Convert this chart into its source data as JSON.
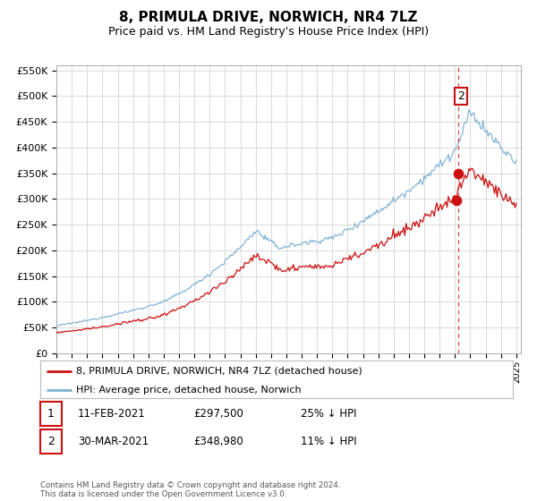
{
  "title": "8, PRIMULA DRIVE, NORWICH, NR4 7LZ",
  "subtitle": "Price paid vs. HM Land Registry's House Price Index (HPI)",
  "ylim": [
    0,
    560000
  ],
  "yticks": [
    0,
    50000,
    100000,
    150000,
    200000,
    250000,
    300000,
    350000,
    400000,
    450000,
    500000,
    550000
  ],
  "hpi_color": "#7eb0d4",
  "price_color": "#cc1111",
  "background_color": "#ffffff",
  "grid_color": "#cccccc",
  "sale1_t": 2021.083,
  "sale1_price": 297500,
  "sale2_t": 2021.208,
  "sale2_price": 348980,
  "legend_label_price": "8, PRIMULA DRIVE, NORWICH, NR4 7LZ (detached house)",
  "legend_label_hpi": "HPI: Average price, detached house, Norwich",
  "footer": "Contains HM Land Registry data © Crown copyright and database right 2024.\nThis data is licensed under the Open Government Licence v3.0."
}
